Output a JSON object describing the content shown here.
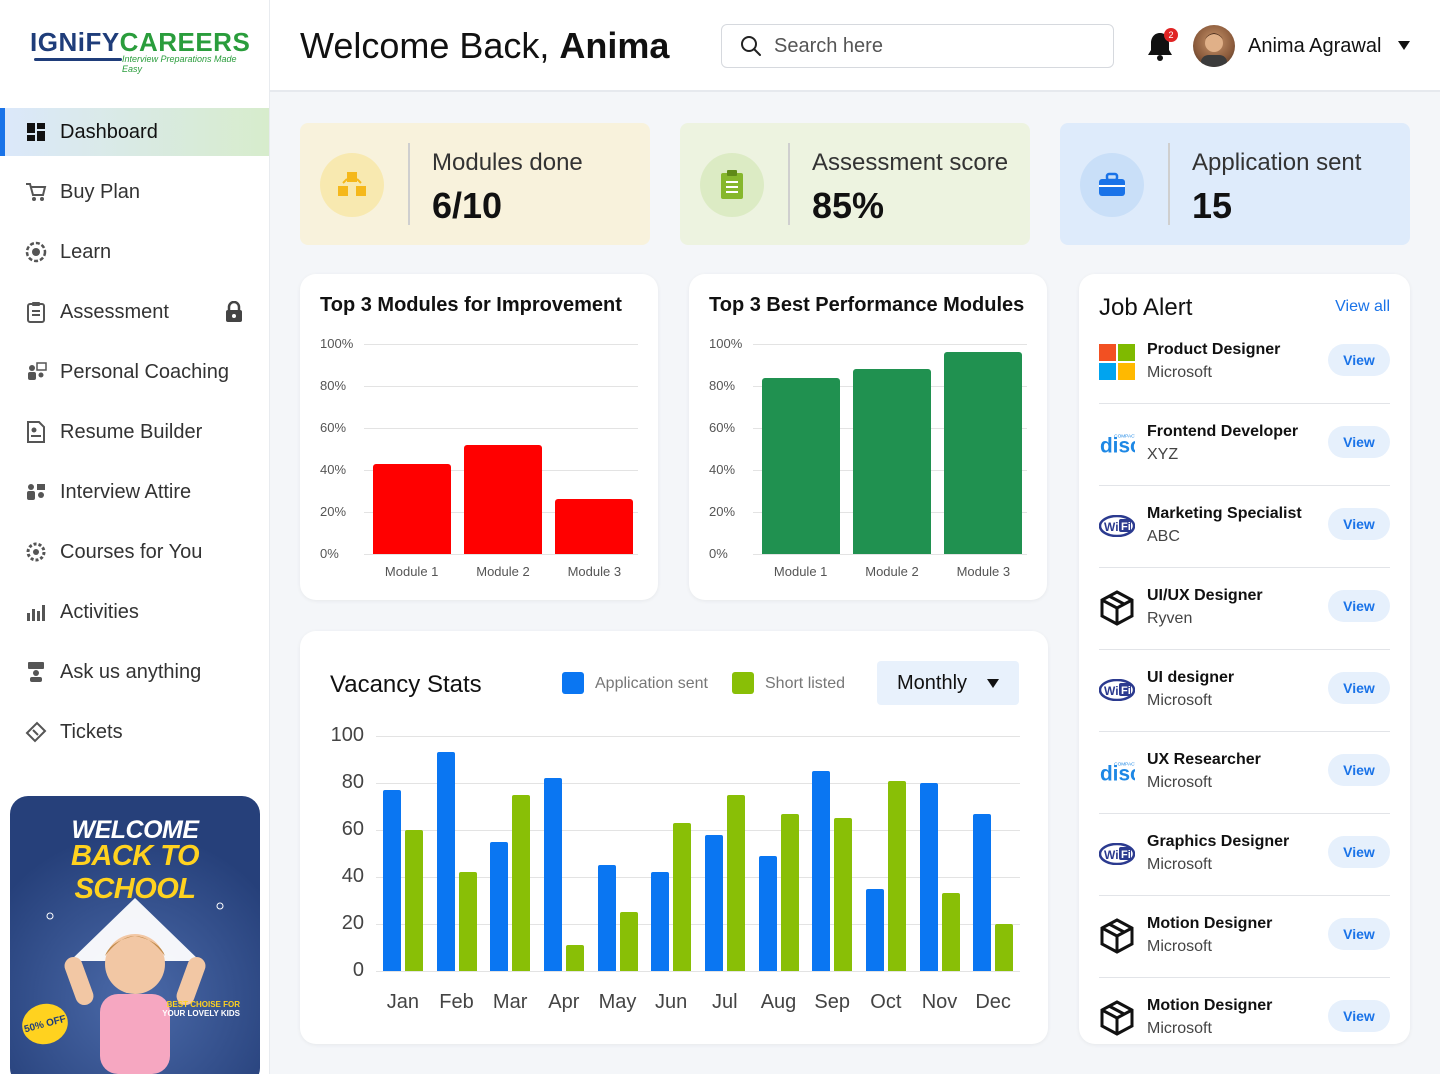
{
  "brand": {
    "logo_main_a": "IGNiFY",
    "logo_main_b": "CAREERS",
    "logo_tagline": "Interview Preparations Made Easy"
  },
  "sidebar": {
    "items": [
      {
        "label": "Dashboard",
        "icon": "dashboard-icon"
      },
      {
        "label": "Buy Plan",
        "icon": "cart-icon"
      },
      {
        "label": "Learn",
        "icon": "learn-icon"
      },
      {
        "label": "Assessment",
        "icon": "clipboard-icon"
      },
      {
        "label": "Personal Coaching",
        "icon": "coaching-icon"
      },
      {
        "label": "Resume Builder",
        "icon": "resume-icon"
      },
      {
        "label": "Interview Attire",
        "icon": "attire-icon"
      },
      {
        "label": "Courses for You",
        "icon": "courses-icon"
      },
      {
        "label": "Activities",
        "icon": "activities-icon"
      },
      {
        "label": "Ask us anything",
        "icon": "ask-icon"
      },
      {
        "label": "Tickets",
        "icon": "tickets-icon"
      }
    ],
    "promo": {
      "title1": "WELCOME",
      "title2": "BACK TO SCHOOL",
      "tag_line1": "BEST CHOISE FOR",
      "tag_line2": "YOUR LOVELY KIDS",
      "badge": "50% OFF"
    }
  },
  "header": {
    "welcome_prefix": "Welcome Back, ",
    "welcome_name": "Anima",
    "search_placeholder": "Search here",
    "notification_count": "2",
    "user_name": "Anima Agrawal"
  },
  "stats": [
    {
      "label": "Modules done",
      "value": "6/10",
      "bg": "#f8f2dc",
      "icon_bg": "#f8e9b0",
      "icon": "cubes-icon"
    },
    {
      "label": "Assessment score",
      "value": "85%",
      "bg": "#edf3e0",
      "icon_bg": "#dcebc4",
      "icon": "clipboard-icon"
    },
    {
      "label": "Application sent",
      "value": "15",
      "bg": "#deebfb",
      "icon_bg": "#c9dff8",
      "icon": "briefcase-icon"
    }
  ],
  "improvement": {
    "title": "Top 3 Modules for Improvement",
    "color": "#ff0000",
    "y_ticks": [
      "100%",
      "80%",
      "60%",
      "40%",
      "20%",
      "0%"
    ]
  },
  "best": {
    "title": "Top 3 Best Performance Modules",
    "color": "#209150",
    "y_ticks": [
      "100%",
      "80%",
      "60%",
      "40%",
      "20%",
      "0%"
    ]
  },
  "vacancy": {
    "title": "Vacancy Stats",
    "legend": [
      "Application sent",
      "Short listed"
    ],
    "colors": [
      "#0a76f2",
      "#89bf06"
    ],
    "period": "Monthly",
    "y_ticks": [
      "100",
      "80",
      "60",
      "40",
      "20",
      "0"
    ]
  },
  "jobs": {
    "title": "Job Alert",
    "view_all": "View all",
    "view_label": "View",
    "items": [
      {
        "title": "Product Designer",
        "company": "Microsoft",
        "logo": "microsoft-icon"
      },
      {
        "title": "Frontend Developer",
        "company": "XYZ",
        "logo": "disc-icon"
      },
      {
        "title": "Marketing Specialist",
        "company": "ABC",
        "logo": "wifi-icon"
      },
      {
        "title": "UI/UX Designer",
        "company": "Ryven",
        "logo": "cube-icon"
      },
      {
        "title": "UI designer",
        "company": "Microsoft",
        "logo": "wifi-icon"
      },
      {
        "title": "UX Researcher",
        "company": "Microsoft",
        "logo": "disc-icon"
      },
      {
        "title": "Graphics Designer",
        "company": "Microsoft",
        "logo": "wifi-icon"
      },
      {
        "title": "Motion Designer",
        "company": "Microsoft",
        "logo": "cube-icon"
      },
      {
        "title": "Motion Designer",
        "company": "Microsoft",
        "logo": "cube-icon"
      }
    ]
  },
  "chart_data": [
    {
      "type": "bar",
      "title": "Top 3 Modules for Improvement",
      "categories": [
        "Module 1",
        "Module 2",
        "Module 3"
      ],
      "values": [
        43,
        52,
        26
      ],
      "ylim": [
        0,
        100
      ],
      "unit": "%"
    },
    {
      "type": "bar",
      "title": "Top 3 Best Performance Modules",
      "categories": [
        "Module 1",
        "Module 2",
        "Module 3"
      ],
      "values": [
        84,
        88,
        96
      ],
      "ylim": [
        0,
        100
      ],
      "unit": "%"
    },
    {
      "type": "bar",
      "title": "Vacancy Stats",
      "categories": [
        "Jan",
        "Feb",
        "Mar",
        "Apr",
        "May",
        "Jun",
        "Jul",
        "Aug",
        "Sep",
        "Oct",
        "Nov",
        "Dec"
      ],
      "series": [
        {
          "name": "Application sent",
          "values": [
            77,
            93,
            55,
            82,
            45,
            42,
            58,
            49,
            85,
            35,
            80,
            67
          ]
        },
        {
          "name": "Short listed",
          "values": [
            60,
            42,
            75,
            11,
            25,
            63,
            75,
            67,
            65,
            81,
            33,
            20
          ]
        }
      ],
      "ylim": [
        0,
        100
      ],
      "grid": true,
      "legend": "top"
    }
  ]
}
